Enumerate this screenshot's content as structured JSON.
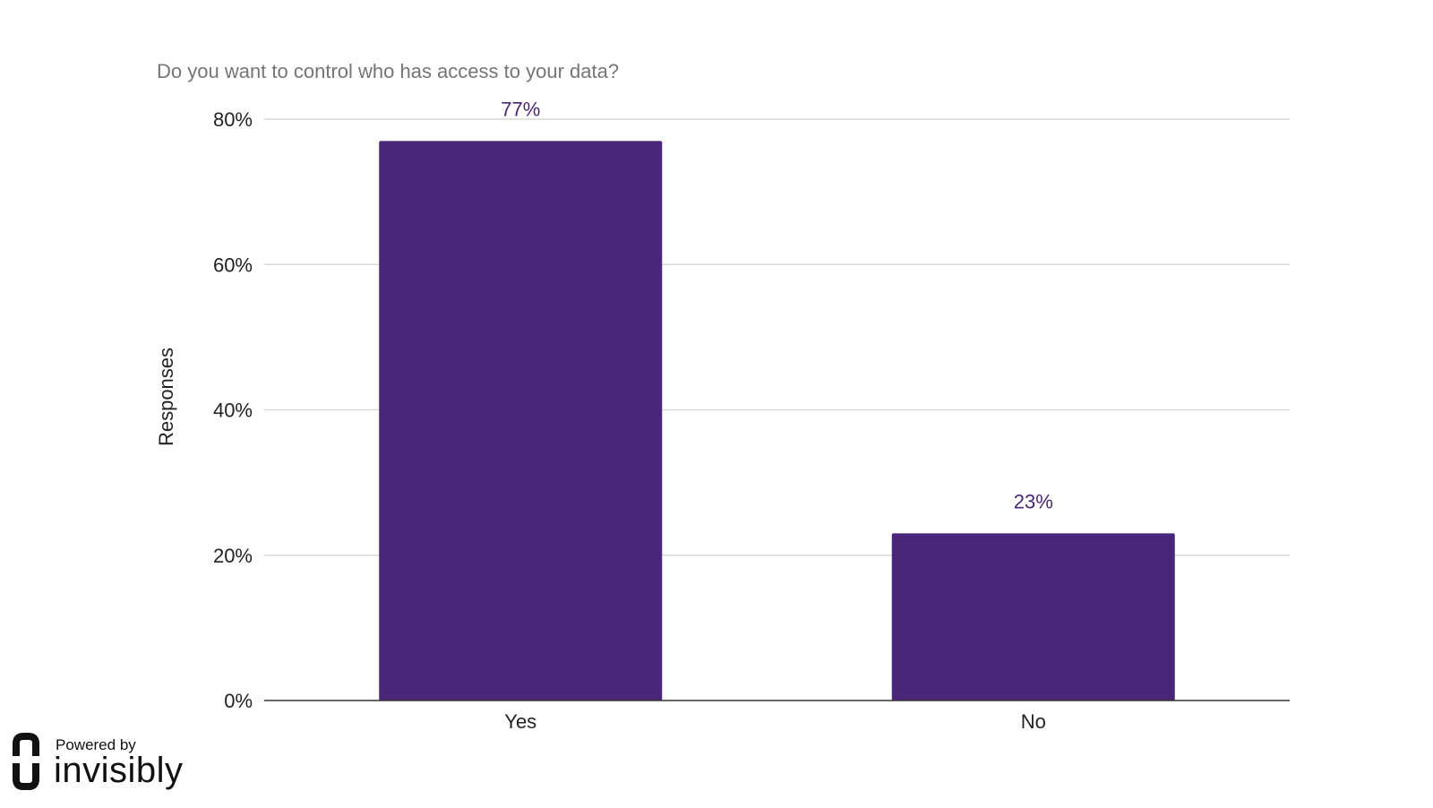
{
  "chart_data": {
    "type": "bar",
    "title": "Do you want to control who has access to your data?",
    "categories": [
      "Yes",
      "No"
    ],
    "values": [
      77,
      23
    ],
    "data_labels": [
      "77%",
      "23%"
    ],
    "ylabel": "Responses",
    "xlabel": "",
    "ylim": [
      0,
      80
    ],
    "yticks": [
      0,
      20,
      40,
      60,
      80
    ],
    "ytick_labels": [
      "0%",
      "20%",
      "40%",
      "60%",
      "80%"
    ],
    "grid": true,
    "legend": "none",
    "colors": {
      "bar": "#4a2679",
      "data_label": "#4a2679",
      "grid": "#d9d9d9",
      "baseline": "#333333",
      "title": "#757575"
    }
  },
  "branding": {
    "powered_by": "Powered by",
    "name": "invisibly",
    "icon": "invisibly-logo-icon"
  }
}
